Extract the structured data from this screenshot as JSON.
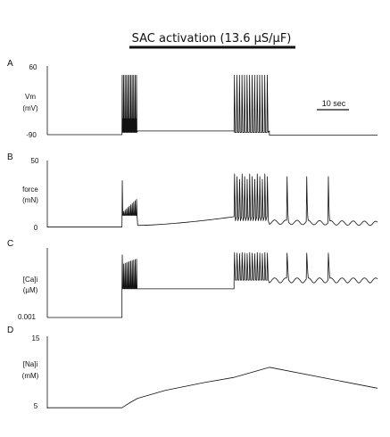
{
  "title": "SAC activation (13.6 µS/µF)",
  "scale_bar": {
    "label": "10 sec",
    "seconds": 10
  },
  "chart_data": [
    {
      "type": "line",
      "panel": "A",
      "ylabel": [
        "Vm",
        "(mV)"
      ],
      "ylim": [
        -90,
        60
      ],
      "yticks": [
        "60",
        "-90"
      ],
      "x_unit": "sec",
      "x_range": [
        0,
        84
      ],
      "series": [
        {
          "baseline": -90,
          "segments": [
            {
              "kind": "flat",
              "t0": 0,
              "t1": 19,
              "v": -90
            },
            {
              "kind": "burst",
              "t0": 19,
              "t1": 23,
              "count": 11,
              "peak": 40,
              "trough": -85,
              "settle": -82,
              "small_peak": -55,
              "small_count": 10
            },
            {
              "kind": "flat",
              "t0": 23,
              "t1": 47.5,
              "v": -82
            },
            {
              "kind": "burst",
              "t0": 47.5,
              "t1": 56.5,
              "count": 14,
              "peak": 40,
              "trough": -85,
              "settle": -82
            },
            {
              "kind": "flat",
              "t0": 56.5,
              "t1": 84,
              "v": -91
            }
          ]
        }
      ]
    },
    {
      "type": "line",
      "panel": "B",
      "ylabel": [
        "force",
        "(mN)"
      ],
      "ylim": [
        0,
        50
      ],
      "yticks": [
        "50",
        "0"
      ],
      "x_unit": "sec",
      "series": [
        {
          "segments": [
            {
              "kind": "flat",
              "t0": 0,
              "t1": 19,
              "v": 0.3
            },
            {
              "kind": "burst",
              "t0": 19,
              "t1": 23,
              "count": 11,
              "first_peak": 35,
              "peak_range": [
                11,
                21
              ],
              "trough": 1,
              "settle": 1.5
            },
            {
              "kind": "ramp",
              "t0": 23,
              "t1": 47.5,
              "v0": 1.5,
              "v1": 8
            },
            {
              "kind": "burst",
              "t0": 47.5,
              "t1": 56.5,
              "count": 14,
              "peak": 40,
              "trough": 5,
              "settle": 5
            },
            {
              "kind": "spikes",
              "t": [
                61,
                66,
                71.5
              ],
              "peak": 38,
              "base": 5,
              "dips": 2
            },
            {
              "kind": "wiggle",
              "t0": 56.5,
              "t1": 84,
              "v0": 4,
              "v1": 3
            }
          ]
        }
      ]
    },
    {
      "type": "line",
      "panel": "C",
      "ylabel": [
        "[Ca]i",
        "(µM)"
      ],
      "ylim": [
        0.001,
        1
      ],
      "yticks": [
        "0.001"
      ],
      "x_unit": "sec",
      "series": [
        {
          "segments": [
            {
              "kind": "flat",
              "t0": 0,
              "t1": 19,
              "v": 0.001
            },
            {
              "kind": "burst",
              "t0": 19,
              "t1": 23,
              "count": 11,
              "first_peak": 0.7,
              "peak_range": [
                0.25,
                0.45
              ],
              "trough": 0.02,
              "settle": 0.02
            },
            {
              "kind": "flat",
              "t0": 23,
              "t1": 47.5,
              "v": 0.02
            },
            {
              "kind": "burst",
              "t0": 47.5,
              "t1": 56.5,
              "count": 14,
              "peak": 0.9,
              "trough": 0.05,
              "settle": 0.05
            },
            {
              "kind": "spikes",
              "t": [
                61,
                66,
                71.5
              ],
              "peak": 0.85,
              "base": 0.05
            },
            {
              "kind": "flat",
              "t0": 56.5,
              "t1": 84,
              "v": 0.05
            }
          ]
        }
      ]
    },
    {
      "type": "line",
      "panel": "D",
      "ylabel": [
        "[Na]i",
        "(mM)"
      ],
      "ylim": [
        5,
        15
      ],
      "yticks": [
        "15",
        "5"
      ],
      "x_unit": "sec",
      "series": [
        {
          "points": [
            [
              0,
              5.1
            ],
            [
              19,
              5.1
            ],
            [
              21,
              5.8
            ],
            [
              23,
              6.4
            ],
            [
              30,
              7.5
            ],
            [
              40,
              8.6
            ],
            [
              47.5,
              9.3
            ],
            [
              56.5,
              10.7
            ],
            [
              84,
              7.8
            ]
          ]
        }
      ]
    }
  ]
}
